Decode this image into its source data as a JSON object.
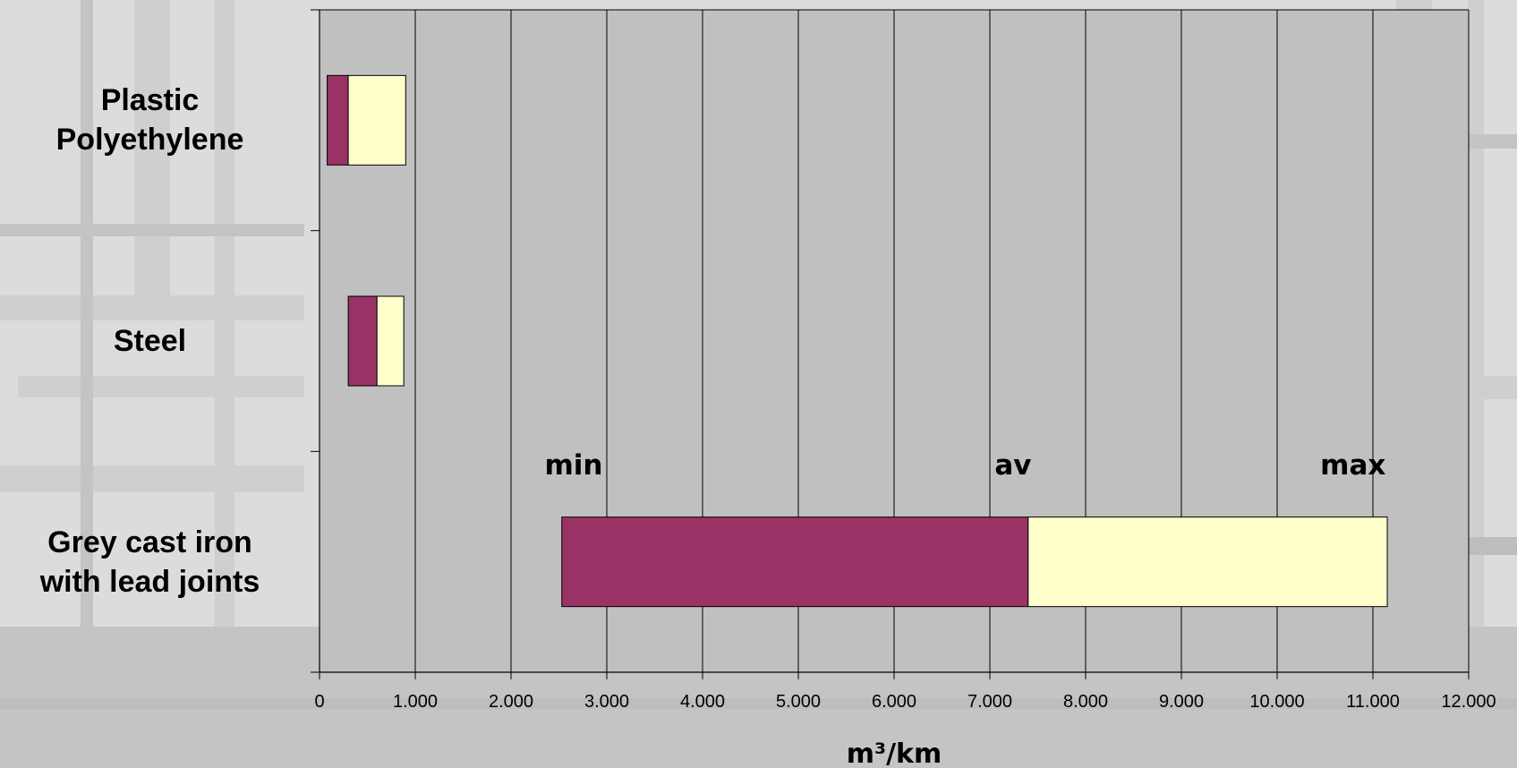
{
  "chart_data": {
    "type": "bar",
    "orientation": "horizontal",
    "stacked": true,
    "categories": [
      "Plastic\nPolyethylene",
      "Steel",
      "Grey cast iron\nwith lead joints"
    ],
    "series": [
      {
        "name": "",
        "start": [
          80,
          300,
          2530
        ],
        "end": [
          300,
          600,
          7400
        ],
        "color": "#993366"
      },
      {
        "name": "",
        "start": [
          300,
          600,
          7400
        ],
        "end": [
          900,
          880,
          11150
        ],
        "color": "#FFFFCC"
      }
    ],
    "xlim": [
      0,
      12000
    ],
    "xticks": [
      0,
      1000,
      2000,
      3000,
      4000,
      5000,
      6000,
      7000,
      8000,
      9000,
      10000,
      11000,
      12000
    ],
    "xtick_labels": [
      "0",
      "1.000",
      "2.000",
      "3.000",
      "4.000",
      "5.000",
      "6.000",
      "7.000",
      "8.000",
      "9.000",
      "10.000",
      "11.000",
      "12.000"
    ],
    "xlabel": "m³/km",
    "grid": true,
    "plot_background": "#C0C0C0",
    "annotations": [
      {
        "text": "min",
        "x": 2350
      },
      {
        "text": "av",
        "x": 7050
      },
      {
        "text": "max",
        "x": 10450
      }
    ]
  }
}
